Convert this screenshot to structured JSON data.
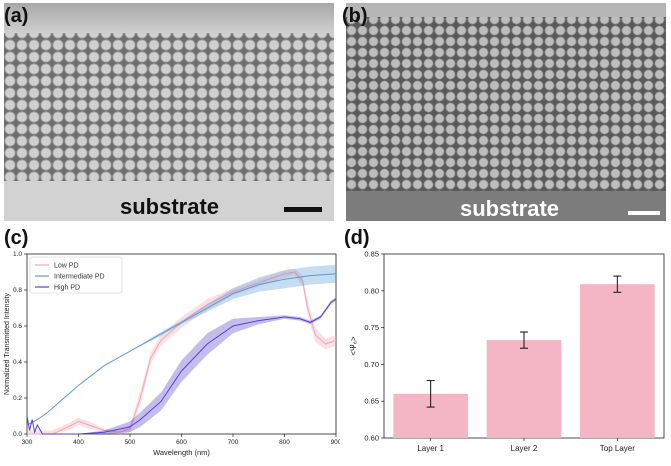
{
  "figure": {
    "panel_a": {
      "label": "(a)",
      "substrate_text": "substrate"
    },
    "panel_b": {
      "label": "(b)",
      "substrate_text": "substrate"
    },
    "panel_c": {
      "label": "(c)"
    },
    "panel_d": {
      "label": "(d)"
    }
  },
  "colors": {
    "low_pd": "#f2a7b4",
    "intermediate_pd": "#5b9bd5",
    "high_pd": "#5a3fcf",
    "bar": "#f4b6c4"
  },
  "chart_data": [
    {
      "type": "line",
      "panel": "c",
      "title": "",
      "xlabel": "Wavelength (nm)",
      "ylabel": "Normalized Transmitted Intensity",
      "xlim": [
        300,
        900
      ],
      "ylim": [
        0.0,
        1.0
      ],
      "xticks": [
        "300",
        "400",
        "500",
        "600",
        "700",
        "800",
        "900"
      ],
      "yticks": [
        "0.0",
        "0.2",
        "0.4",
        "0.6",
        "0.8",
        "1.0"
      ],
      "legend_position": "top-left",
      "series": [
        {
          "name": "Low PD",
          "x": [
            300,
            350,
            380,
            400,
            420,
            450,
            480,
            500,
            520,
            540,
            560,
            600,
            650,
            700,
            750,
            780,
            800,
            820,
            835,
            845,
            860,
            880,
            900
          ],
          "y": [
            0.0,
            0.0,
            0.04,
            0.07,
            0.05,
            0.02,
            0.01,
            0.03,
            0.2,
            0.42,
            0.52,
            0.62,
            0.72,
            0.79,
            0.84,
            0.87,
            0.89,
            0.9,
            0.85,
            0.7,
            0.55,
            0.5,
            0.52
          ],
          "band": [
            0.02,
            0.02,
            0.02,
            0.02,
            0.02,
            0.01,
            0.01,
            0.02,
            0.04,
            0.03,
            0.03,
            0.03,
            0.03,
            0.02,
            0.02,
            0.02,
            0.02,
            0.02,
            0.03,
            0.04,
            0.04,
            0.03,
            0.03
          ]
        },
        {
          "name": "Intermediate PD",
          "x": [
            300,
            320,
            340,
            360,
            380,
            400,
            450,
            500,
            550,
            600,
            650,
            700,
            750,
            800,
            850,
            900
          ],
          "y": [
            0.05,
            0.08,
            0.12,
            0.17,
            0.22,
            0.27,
            0.38,
            0.46,
            0.54,
            0.62,
            0.7,
            0.78,
            0.83,
            0.86,
            0.88,
            0.89
          ],
          "band": [
            0.0,
            0.0,
            0.0,
            0.0,
            0.0,
            0.0,
            0.0,
            0.0,
            0.01,
            0.01,
            0.02,
            0.03,
            0.04,
            0.05,
            0.05,
            0.05
          ]
        },
        {
          "name": "High PD",
          "x": [
            300,
            305,
            310,
            315,
            320,
            330,
            350,
            400,
            450,
            500,
            520,
            560,
            600,
            650,
            700,
            750,
            800,
            830,
            850,
            870,
            890,
            900
          ],
          "y": [
            0.1,
            0.02,
            0.08,
            0.01,
            0.05,
            0.0,
            0.0,
            0.0,
            0.01,
            0.04,
            0.08,
            0.18,
            0.35,
            0.5,
            0.6,
            0.63,
            0.65,
            0.64,
            0.62,
            0.65,
            0.73,
            0.75
          ],
          "band": [
            0.0,
            0.0,
            0.0,
            0.0,
            0.0,
            0.0,
            0.0,
            0.0,
            0.01,
            0.03,
            0.04,
            0.05,
            0.06,
            0.06,
            0.04,
            0.02,
            0.01,
            0.01,
            0.01,
            0.01,
            0.01,
            0.01
          ]
        }
      ]
    },
    {
      "type": "bar",
      "panel": "d",
      "title": "",
      "xlabel": "",
      "ylabel": "<Ψ₆>",
      "categories": [
        "Layer 1",
        "Layer 2",
        "Top Layer"
      ],
      "values": [
        0.66,
        0.733,
        0.809
      ],
      "errors": [
        0.018,
        0.011,
        0.011
      ],
      "ylim": [
        0.6,
        0.85
      ],
      "yticks": [
        "0.60",
        "0.65",
        "0.70",
        "0.75",
        "0.80",
        "0.85"
      ]
    }
  ]
}
